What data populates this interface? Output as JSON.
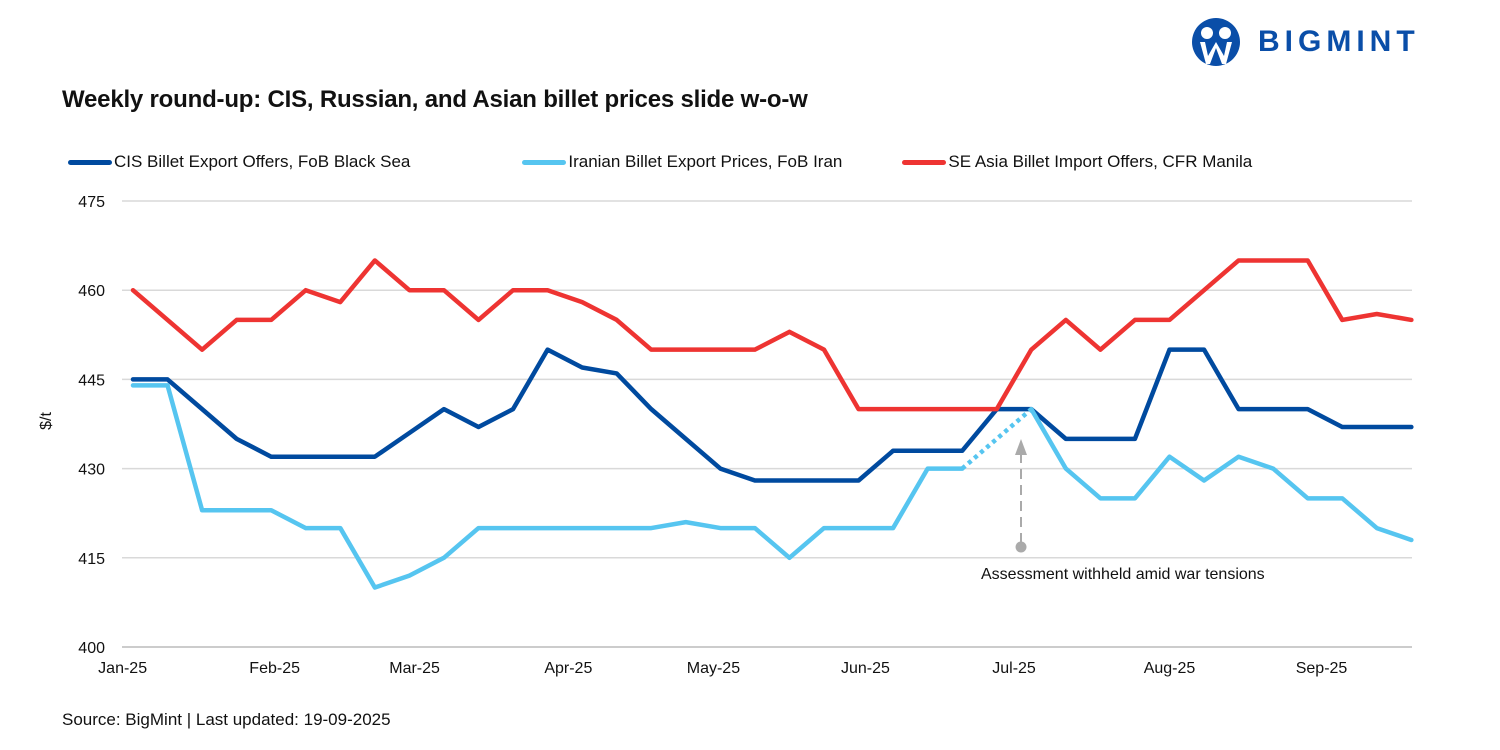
{
  "logo": {
    "text": "BIGMINT",
    "color": "#0a4ea8"
  },
  "chart_data": {
    "type": "line",
    "title": "Weekly round-up: CIS, Russian, and Asian billet prices slide w-o-w",
    "ylabel": "$/t",
    "xlabel": "",
    "ylim": [
      400,
      475
    ],
    "yticks": [
      400,
      415,
      430,
      445,
      460,
      475
    ],
    "x_tick_labels": [
      "Jan-25",
      "Feb-25",
      "Mar-25",
      "Apr-25",
      "May-25",
      "Jun-25",
      "Jul-25",
      "Aug-25",
      "Sep-25"
    ],
    "grid": true,
    "legend_position": "top",
    "frequency": "weekly",
    "series": [
      {
        "name": "CIS Billet Export Offers, FoB Black Sea",
        "color": "#004a9f",
        "values": [
          445,
          445,
          440,
          435,
          432,
          432,
          432,
          432,
          436,
          440,
          437,
          440,
          450,
          447,
          446,
          440,
          435,
          430,
          428,
          428,
          428,
          428,
          433,
          433,
          433,
          440,
          440,
          435,
          435,
          435,
          450,
          450,
          440,
          440,
          440,
          437,
          437,
          437
        ]
      },
      {
        "name": "Iranian Billet Export Prices, FoB Iran",
        "color": "#56c5f0",
        "values": [
          444,
          444,
          423,
          423,
          423,
          420,
          420,
          410,
          412,
          415,
          420,
          420,
          420,
          420,
          420,
          420,
          421,
          420,
          420,
          415,
          420,
          420,
          420,
          430,
          430,
          null,
          440,
          430,
          425,
          425,
          432,
          428,
          432,
          430,
          425,
          425,
          420,
          418
        ]
      },
      {
        "name": "SE Asia Billet Import Offers, CFR Manila",
        "color": "#ee3432",
        "values": [
          460,
          455,
          450,
          455,
          455,
          460,
          458,
          465,
          460,
          460,
          455,
          460,
          460,
          458,
          455,
          450,
          450,
          450,
          450,
          453,
          450,
          440,
          440,
          440,
          440,
          440,
          450,
          455,
          450,
          455,
          455,
          460,
          465,
          465,
          465,
          455,
          456,
          455
        ]
      }
    ],
    "annotations": [
      {
        "text": "Assessment withheld amid  war tensions",
        "series": "Iranian Billet Export Prices, FoB Iran"
      }
    ]
  },
  "source": "Source: BigMint | Last updated: 19-09-2025"
}
